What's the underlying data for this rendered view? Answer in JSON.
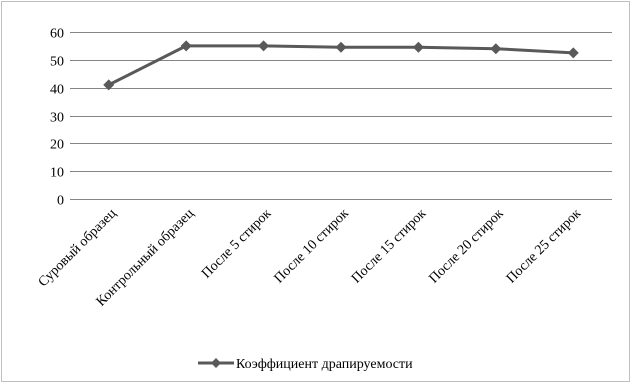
{
  "chart_data": {
    "type": "line",
    "categories": [
      "Суровый образец",
      "Контрольный образец",
      "После 5 стирок",
      "После 10 стирок",
      "После 15 стирок",
      "После 20 стирок",
      "После 25 стирок"
    ],
    "series": [
      {
        "name": "Коэффициент драпируемости",
        "values": [
          41,
          55,
          55,
          54.5,
          54.5,
          54,
          52.5
        ],
        "color": "#595959",
        "marker": "diamond"
      }
    ],
    "y_ticks": [
      0,
      10,
      20,
      30,
      40,
      50,
      60
    ],
    "ylim": [
      0,
      60
    ],
    "grid": true,
    "gridline_color": "#868686",
    "legend_position": "bottom"
  }
}
